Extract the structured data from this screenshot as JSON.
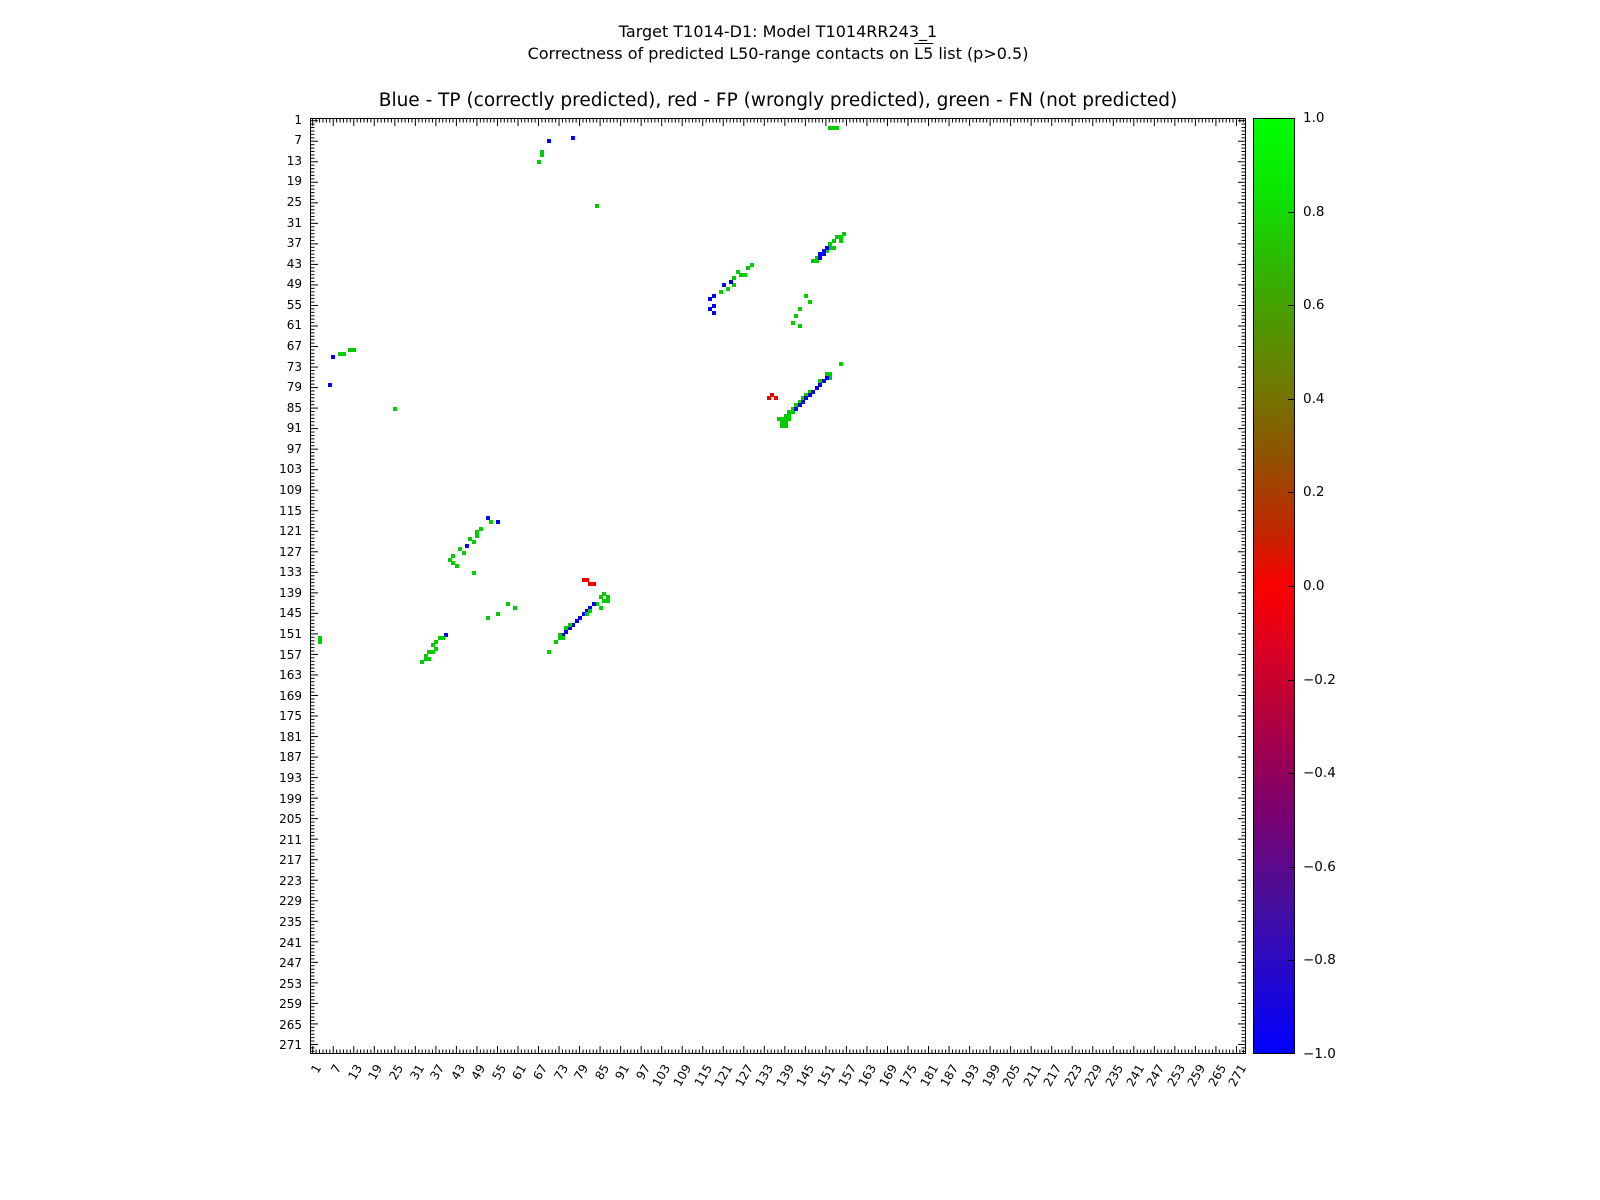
{
  "figure": {
    "title_line1": "Target T1014-D1: Model T1014RR243_1",
    "title_line2_pre": "Correctness of predicted L50-range contacts on ",
    "title_line2_overlined": "L5",
    "title_line2_post": " list (p>0.5)"
  },
  "chart_data": {
    "type": "scatter",
    "title": "Blue - TP (correctly predicted), red - FP (wrongly predicted), green - FN (not predicted)",
    "xlabel": "",
    "ylabel": "",
    "axis_range": [
      1,
      273
    ],
    "y_axis_inverted": true,
    "tick_step": 6,
    "residue_ticks": [
      1,
      7,
      13,
      19,
      25,
      31,
      37,
      43,
      49,
      55,
      61,
      67,
      73,
      79,
      85,
      91,
      97,
      103,
      109,
      115,
      121,
      127,
      133,
      139,
      145,
      151,
      157,
      163,
      169,
      175,
      181,
      187,
      193,
      199,
      205,
      211,
      217,
      223,
      229,
      235,
      241,
      247,
      253,
      259,
      265,
      271
    ],
    "grid": false,
    "colors": {
      "tp": "#0000ee",
      "fp": "#ee0000",
      "fn": "#00cc00"
    },
    "colorbar": {
      "ticks": [
        "1.0",
        "0.8",
        "0.6",
        "0.4",
        "0.2",
        "0.0",
        "−0.2",
        "−0.4",
        "−0.6",
        "−0.8",
        "−1.0"
      ],
      "range": [
        1.0,
        -1.0
      ],
      "gradient": [
        {
          "pos": 0,
          "color": "#00ff00"
        },
        {
          "pos": 8,
          "color": "#0be400"
        },
        {
          "pos": 18,
          "color": "#3aaa00"
        },
        {
          "pos": 28,
          "color": "#6d7c00"
        },
        {
          "pos": 36,
          "color": "#8f5400"
        },
        {
          "pos": 44,
          "color": "#c02700"
        },
        {
          "pos": 50,
          "color": "#fb0000"
        },
        {
          "pos": 56,
          "color": "#e0001e"
        },
        {
          "pos": 64,
          "color": "#b3003f"
        },
        {
          "pos": 74,
          "color": "#7c006e"
        },
        {
          "pos": 84,
          "color": "#470f9e"
        },
        {
          "pos": 100,
          "color": "#0000ff"
        }
      ]
    },
    "points": [
      [
        152,
        3,
        "fn"
      ],
      [
        153,
        3,
        "fn"
      ],
      [
        154,
        3,
        "fn"
      ],
      [
        70,
        7,
        "tp"
      ],
      [
        77,
        6,
        "tp"
      ],
      [
        68,
        10,
        "fn"
      ],
      [
        68,
        11,
        "fn"
      ],
      [
        67,
        13,
        "fn"
      ],
      [
        84,
        26,
        "fn"
      ],
      [
        156,
        34,
        "fn"
      ],
      [
        155,
        35,
        "fn"
      ],
      [
        154,
        35,
        "fn"
      ],
      [
        155,
        36,
        "fn"
      ],
      [
        153,
        36,
        "fn"
      ],
      [
        152,
        37,
        "fn"
      ],
      [
        153,
        38,
        "fn"
      ],
      [
        152,
        38,
        "fn"
      ],
      [
        151,
        39,
        "fn"
      ],
      [
        148,
        41,
        "fn"
      ],
      [
        148,
        42,
        "fn"
      ],
      [
        147,
        42,
        "fn"
      ],
      [
        151,
        38,
        "tp"
      ],
      [
        150,
        39,
        "tp"
      ],
      [
        149,
        40,
        "tp"
      ],
      [
        150,
        40,
        "tp"
      ],
      [
        149,
        41,
        "tp"
      ],
      [
        129,
        43,
        "fn"
      ],
      [
        128,
        44,
        "fn"
      ],
      [
        125,
        45,
        "fn"
      ],
      [
        126,
        46,
        "fn"
      ],
      [
        127,
        46,
        "fn"
      ],
      [
        124,
        47,
        "fn"
      ],
      [
        124,
        49,
        "fn"
      ],
      [
        122,
        50,
        "fn"
      ],
      [
        123,
        48,
        "tp"
      ],
      [
        121,
        49,
        "tp"
      ],
      [
        120,
        51,
        "fn"
      ],
      [
        118,
        52,
        "tp"
      ],
      [
        117,
        53,
        "tp"
      ],
      [
        118,
        55,
        "tp"
      ],
      [
        117,
        56,
        "tp"
      ],
      [
        118,
        57,
        "tp"
      ],
      [
        145,
        52,
        "fn"
      ],
      [
        146,
        54,
        "fn"
      ],
      [
        143,
        56,
        "fn"
      ],
      [
        142,
        58,
        "fn"
      ],
      [
        141,
        60,
        "fn"
      ],
      [
        143,
        61,
        "fn"
      ],
      [
        12,
        68,
        "fn"
      ],
      [
        13,
        68,
        "fn"
      ],
      [
        9,
        69,
        "fn"
      ],
      [
        10,
        69,
        "fn"
      ],
      [
        7,
        70,
        "tp"
      ],
      [
        6,
        78,
        "tp"
      ],
      [
        25,
        85,
        "fn"
      ],
      [
        155,
        72,
        "fn"
      ],
      [
        151,
        75,
        "fn"
      ],
      [
        152,
        75,
        "fn"
      ],
      [
        152,
        76,
        "fn"
      ],
      [
        149,
        77,
        "fn"
      ],
      [
        146,
        80,
        "fn"
      ],
      [
        145,
        81,
        "fn"
      ],
      [
        144,
        82,
        "fn"
      ],
      [
        143,
        83,
        "fn"
      ],
      [
        142,
        84,
        "fn"
      ],
      [
        141,
        85,
        "fn"
      ],
      [
        141,
        86,
        "fn"
      ],
      [
        140,
        86,
        "fn"
      ],
      [
        140,
        87,
        "fn"
      ],
      [
        139,
        87,
        "fn"
      ],
      [
        140,
        88,
        "fn"
      ],
      [
        139,
        88,
        "fn"
      ],
      [
        138,
        88,
        "fn"
      ],
      [
        137,
        88,
        "fn"
      ],
      [
        139,
        89,
        "fn"
      ],
      [
        138,
        89,
        "fn"
      ],
      [
        139,
        90,
        "fn"
      ],
      [
        138,
        90,
        "fn"
      ],
      [
        151,
        76,
        "tp"
      ],
      [
        150,
        77,
        "tp"
      ],
      [
        149,
        78,
        "tp"
      ],
      [
        148,
        79,
        "tp"
      ],
      [
        147,
        80,
        "tp"
      ],
      [
        146,
        81,
        "tp"
      ],
      [
        145,
        82,
        "tp"
      ],
      [
        144,
        83,
        "tp"
      ],
      [
        143,
        84,
        "tp"
      ],
      [
        142,
        85,
        "tp"
      ],
      [
        135,
        81,
        "fp"
      ],
      [
        134,
        82,
        "fp"
      ],
      [
        136,
        82,
        "fp"
      ],
      [
        52,
        117,
        "tp"
      ],
      [
        55,
        118,
        "tp"
      ],
      [
        46,
        125,
        "tp"
      ],
      [
        53,
        118,
        "fn"
      ],
      [
        50,
        120,
        "fn"
      ],
      [
        49,
        121,
        "fn"
      ],
      [
        49,
        122,
        "fn"
      ],
      [
        47,
        123,
        "fn"
      ],
      [
        48,
        124,
        "fn"
      ],
      [
        44,
        126,
        "fn"
      ],
      [
        45,
        127,
        "fn"
      ],
      [
        42,
        128,
        "fn"
      ],
      [
        41,
        129,
        "fn"
      ],
      [
        42,
        130,
        "fn"
      ],
      [
        43,
        131,
        "fn"
      ],
      [
        48,
        133,
        "fn"
      ],
      [
        60,
        143,
        "fn"
      ],
      [
        58,
        142,
        "fn"
      ],
      [
        55,
        145,
        "fn"
      ],
      [
        52,
        146,
        "fn"
      ],
      [
        80,
        135,
        "fp"
      ],
      [
        81,
        135,
        "fp"
      ],
      [
        82,
        136,
        "fp"
      ],
      [
        83,
        136,
        "fp"
      ],
      [
        86,
        139,
        "fn"
      ],
      [
        87,
        140,
        "fn"
      ],
      [
        85,
        140,
        "fn"
      ],
      [
        86,
        141,
        "fn"
      ],
      [
        87,
        141,
        "fn"
      ],
      [
        84,
        142,
        "fn"
      ],
      [
        85,
        143,
        "fn"
      ],
      [
        83,
        142,
        "tp"
      ],
      [
        82,
        143,
        "tp"
      ],
      [
        81,
        144,
        "tp"
      ],
      [
        80,
        145,
        "tp"
      ],
      [
        79,
        146,
        "tp"
      ],
      [
        78,
        147,
        "tp"
      ],
      [
        77,
        148,
        "tp"
      ],
      [
        76,
        149,
        "tp"
      ],
      [
        75,
        150,
        "tp"
      ],
      [
        74,
        151,
        "tp"
      ],
      [
        82,
        144,
        "fn"
      ],
      [
        81,
        145,
        "fn"
      ],
      [
        76,
        148,
        "fn"
      ],
      [
        75,
        149,
        "fn"
      ],
      [
        73,
        151,
        "fn"
      ],
      [
        74,
        152,
        "fn"
      ],
      [
        73,
        152,
        "fn"
      ],
      [
        72,
        153,
        "fn"
      ],
      [
        70,
        156,
        "fn"
      ],
      [
        40,
        151,
        "tp"
      ],
      [
        39,
        152,
        "fn"
      ],
      [
        38,
        152,
        "fn"
      ],
      [
        37,
        153,
        "fn"
      ],
      [
        36,
        154,
        "fn"
      ],
      [
        37,
        155,
        "fn"
      ],
      [
        36,
        156,
        "fn"
      ],
      [
        35,
        156,
        "fn"
      ],
      [
        34,
        157,
        "fn"
      ],
      [
        35,
        158,
        "fn"
      ],
      [
        34,
        158,
        "fn"
      ],
      [
        33,
        159,
        "fn"
      ],
      [
        3,
        152,
        "fn"
      ],
      [
        3,
        153,
        "fn"
      ]
    ]
  }
}
